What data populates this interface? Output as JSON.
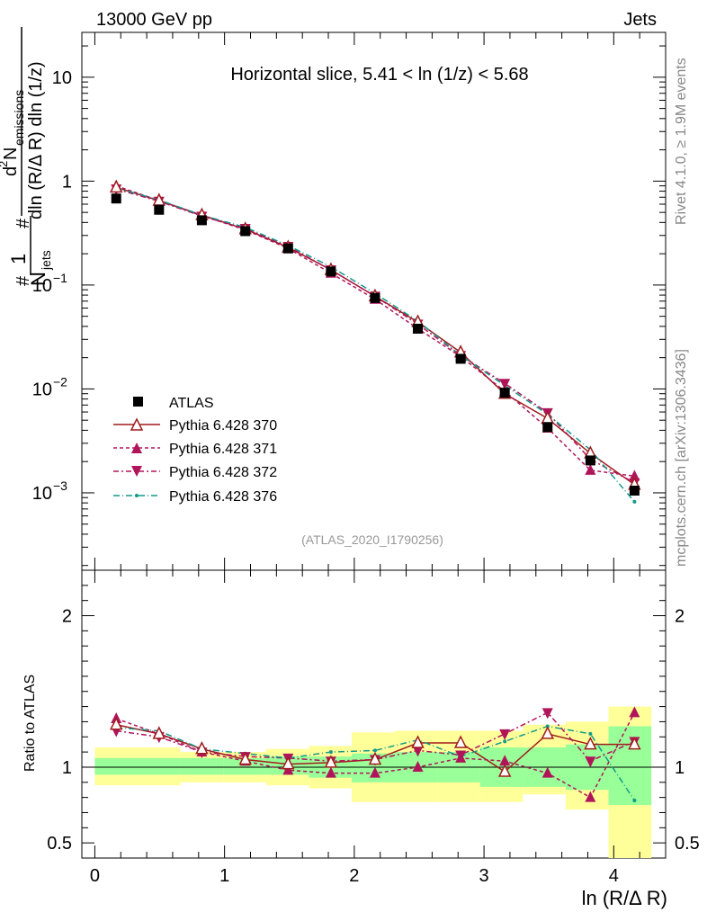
{
  "header": {
    "left": "13000 GeV pp",
    "right": "Jets"
  },
  "side_text": {
    "top": "Rivet 4.1.0, ≥ 1.9M events",
    "bottom": "mcplots.cern.ch [arXiv:1306.3436]"
  },
  "plot": {
    "title": "Horizontal slice, 5.41 < ln (1/z) < 5.68",
    "analysis_tag": "(ATLAS_2020_I1790256)",
    "ylabel": {
      "frac_num": "1",
      "frac_den_main": "N",
      "frac_den_sub": "jets",
      "d2": "d",
      "d2_sup": "2",
      "numerator_main": "N",
      "numerator_sub": "emissions",
      "denominator": "dln (R/Δ R) dln (1/z)",
      "hash": "#"
    },
    "xlabel": "ln (R/Δ R)",
    "ratio_ylabel": "Ratio to ATLAS",
    "x_tick_labels": [
      "0",
      "1",
      "2",
      "3",
      "4"
    ],
    "y_tick_labels": {
      "10": "10",
      "1": "1",
      "0.1": "10",
      "0.01": "10",
      "0.001": "10"
    },
    "y_tick_exponents": {
      "0.1": "−1",
      "0.01": "−2",
      "0.001": "−3"
    },
    "ratio_tick_labels": [
      "2",
      "1",
      "0.5"
    ]
  },
  "legend": [
    {
      "label": "ATLAS"
    },
    {
      "label": "Pythia 6.428 370"
    },
    {
      "label": "Pythia 6.428 371"
    },
    {
      "label": "Pythia 6.428 372"
    },
    {
      "label": "Pythia 6.428 376"
    }
  ],
  "colors": {
    "atlas": "#000000",
    "p370": "#a01c1c",
    "p371": "#b0155a",
    "p372": "#b0155a",
    "p376": "#139a8a",
    "band_inner": "#99ff99",
    "band_outer": "#ffff99"
  },
  "chart_data": {
    "type": "scatter",
    "xscale": "linear",
    "yscale": "log",
    "xlim": [
      -0.1,
      4.4
    ],
    "ylim": [
      0.00018,
      27
    ],
    "ratio_ylim": [
      0.4,
      2.3
    ],
    "x": [
      0.165,
      0.495,
      0.825,
      1.16,
      1.49,
      1.82,
      2.16,
      2.49,
      2.82,
      3.16,
      3.49,
      3.82,
      4.16
    ],
    "x_edges": [
      0,
      0.33,
      0.66,
      0.99,
      1.32,
      1.65,
      1.98,
      2.31,
      2.64,
      2.97,
      3.3,
      3.63,
      3.96,
      4.29
    ],
    "series": [
      {
        "name": "ATLAS",
        "style": "square",
        "values": [
          0.68,
          0.53,
          0.42,
          0.33,
          0.225,
          0.135,
          0.075,
          0.038,
          0.0195,
          0.0092,
          0.0043,
          0.00205,
          0.00105
        ]
      },
      {
        "name": "Pythia 6.428 370",
        "style": "open-triangle-up",
        "line": "solid",
        "values": [
          0.87,
          0.65,
          0.47,
          0.345,
          0.23,
          0.14,
          0.078,
          0.044,
          0.0225,
          0.009,
          0.0052,
          0.0024,
          0.0012
        ]
      },
      {
        "name": "Pythia 6.428 371",
        "style": "triangle-up",
        "line": "dashed",
        "values": [
          0.9,
          0.65,
          0.465,
          0.34,
          0.225,
          0.13,
          0.073,
          0.038,
          0.0205,
          0.0095,
          0.0042,
          0.00165,
          0.00145
        ]
      },
      {
        "name": "Pythia 6.428 372",
        "style": "triangle-down",
        "line": "dash-dot",
        "values": [
          0.84,
          0.64,
          0.46,
          0.35,
          0.235,
          0.14,
          0.078,
          0.042,
          0.021,
          0.0113,
          0.0059,
          0.0021,
          0.00125
        ]
      },
      {
        "name": "Pythia 6.428 376",
        "style": "dot",
        "line": "dash-dot",
        "values": [
          0.86,
          0.66,
          0.47,
          0.36,
          0.24,
          0.15,
          0.083,
          0.045,
          0.021,
          0.0108,
          0.0057,
          0.0026,
          0.00082
        ]
      }
    ],
    "ratio_series": [
      {
        "name": "Pythia 6.428 370",
        "values": [
          1.28,
          1.22,
          1.12,
          1.05,
          1.02,
          1.03,
          1.05,
          1.16,
          1.16,
          0.97,
          1.22,
          1.15,
          1.15
        ]
      },
      {
        "name": "Pythia 6.428 371",
        "values": [
          1.32,
          1.22,
          1.1,
          1.04,
          0.98,
          0.96,
          0.96,
          1.0,
          1.06,
          1.04,
          0.96,
          0.8,
          1.36
        ]
      },
      {
        "name": "Pythia 6.428 372",
        "values": [
          1.24,
          1.2,
          1.1,
          1.07,
          1.06,
          1.04,
          1.05,
          1.11,
          1.08,
          1.22,
          1.36,
          1.04,
          1.17
        ]
      },
      {
        "name": "Pythia 6.428 376",
        "values": [
          1.26,
          1.24,
          1.12,
          1.09,
          1.06,
          1.1,
          1.11,
          1.18,
          1.07,
          1.17,
          1.27,
          1.22,
          0.78
        ]
      }
    ],
    "band_inner": [
      [
        0.95,
        1.06
      ],
      [
        0.95,
        1.06
      ],
      [
        0.95,
        1.06
      ],
      [
        0.95,
        1.06
      ],
      [
        0.95,
        1.07
      ],
      [
        0.93,
        1.07
      ],
      [
        0.9,
        1.09
      ],
      [
        0.9,
        1.1
      ],
      [
        0.9,
        1.1
      ],
      [
        0.87,
        1.13
      ],
      [
        0.87,
        1.13
      ],
      [
        0.85,
        1.15
      ],
      [
        0.75,
        1.27
      ]
    ],
    "band_outer": [
      [
        0.88,
        1.13
      ],
      [
        0.88,
        1.13
      ],
      [
        0.9,
        1.1
      ],
      [
        0.9,
        1.1
      ],
      [
        0.88,
        1.12
      ],
      [
        0.86,
        1.14
      ],
      [
        0.77,
        1.23
      ],
      [
        0.77,
        1.24
      ],
      [
        0.77,
        1.24
      ],
      [
        0.77,
        1.24
      ],
      [
        0.82,
        1.28
      ],
      [
        0.72,
        1.3
      ],
      [
        0.36,
        1.4
      ]
    ]
  }
}
